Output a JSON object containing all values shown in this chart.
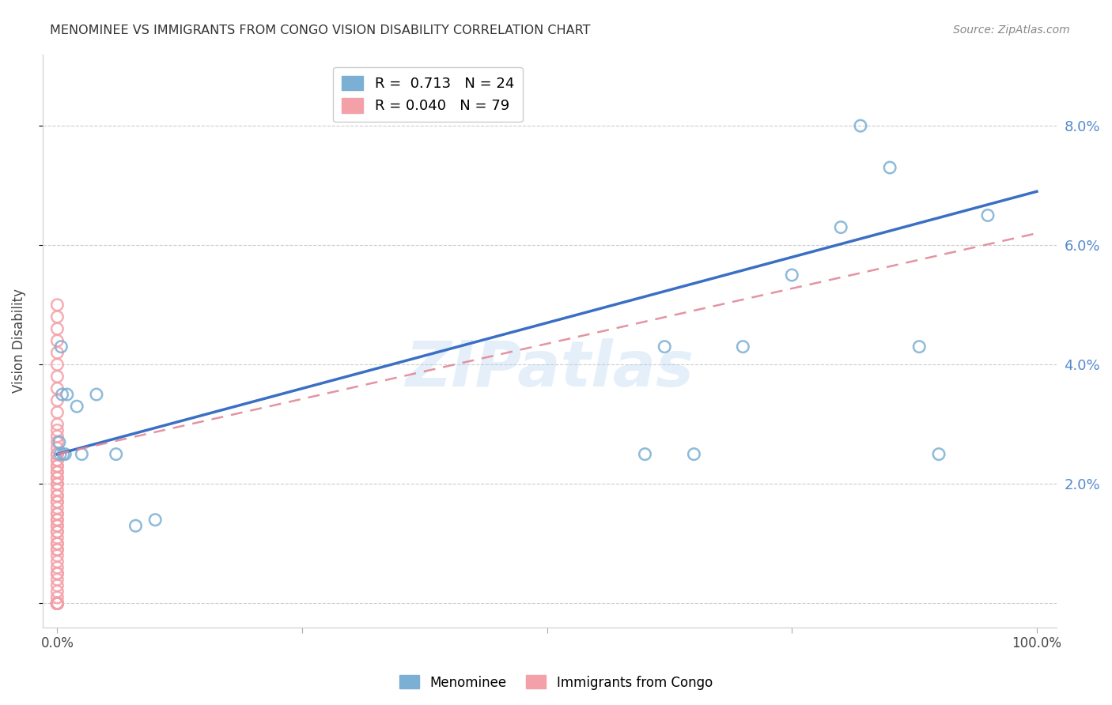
{
  "title": "MENOMINEE VS IMMIGRANTS FROM CONGO VISION DISABILITY CORRELATION CHART",
  "source": "Source: ZipAtlas.com",
  "ylabel": "Vision Disability",
  "watermark": "ZIPatlas",
  "menominee_R": "0.713",
  "menominee_N": "24",
  "congo_R": "0.040",
  "congo_N": "79",
  "menominee_color": "#7BAFD4",
  "congo_color": "#F4A0A8",
  "line_menominee_color": "#3A6FC4",
  "line_congo_color": "#E08898",
  "background_color": "#FFFFFF",
  "grid_color": "#CCCCCC",
  "menominee_x": [
    0.002,
    0.003,
    0.004,
    0.005,
    0.006,
    0.008,
    0.01,
    0.02,
    0.025,
    0.04,
    0.06,
    0.08,
    0.1,
    0.6,
    0.62,
    0.65,
    0.7,
    0.75,
    0.8,
    0.82,
    0.85,
    0.88,
    0.9,
    0.95
  ],
  "menominee_y": [
    0.027,
    0.025,
    0.043,
    0.035,
    0.025,
    0.025,
    0.035,
    0.033,
    0.025,
    0.035,
    0.025,
    0.013,
    0.014,
    0.025,
    0.043,
    0.025,
    0.043,
    0.055,
    0.063,
    0.08,
    0.073,
    0.043,
    0.025,
    0.065
  ],
  "congo_x": [
    0.0,
    0.0,
    0.0,
    0.0,
    0.0,
    0.0,
    0.0,
    0.0,
    0.0,
    0.0,
    0.0,
    0.0,
    0.0,
    0.0,
    0.0,
    0.0,
    0.0,
    0.0,
    0.0,
    0.0,
    0.0,
    0.0,
    0.0,
    0.0,
    0.0,
    0.0,
    0.0,
    0.0,
    0.0,
    0.0,
    0.0,
    0.0,
    0.0,
    0.0,
    0.0,
    0.0,
    0.0,
    0.0,
    0.0,
    0.0,
    0.0,
    0.0,
    0.0,
    0.0,
    0.0,
    0.0,
    0.0,
    0.0,
    0.0,
    0.0,
    0.0,
    0.0,
    0.0,
    0.0,
    0.0,
    0.0,
    0.0,
    0.0,
    0.0,
    0.0,
    0.0,
    0.0,
    0.0,
    0.0,
    0.0,
    0.0,
    0.0,
    0.0,
    0.0,
    0.0,
    0.0,
    0.0,
    0.0,
    0.0,
    0.0,
    0.0,
    0.0,
    0.0,
    0.0
  ],
  "congo_y": [
    0.05,
    0.048,
    0.046,
    0.044,
    0.042,
    0.04,
    0.038,
    0.036,
    0.034,
    0.032,
    0.03,
    0.029,
    0.028,
    0.027,
    0.026,
    0.025,
    0.025,
    0.024,
    0.024,
    0.023,
    0.023,
    0.022,
    0.022,
    0.021,
    0.021,
    0.02,
    0.02,
    0.019,
    0.018,
    0.018,
    0.017,
    0.017,
    0.016,
    0.015,
    0.015,
    0.014,
    0.014,
    0.013,
    0.013,
    0.012,
    0.012,
    0.011,
    0.01,
    0.01,
    0.009,
    0.009,
    0.008,
    0.007,
    0.006,
    0.005,
    0.005,
    0.004,
    0.003,
    0.002,
    0.001,
    0.0,
    0.0,
    0.0,
    0.0,
    0.0,
    0.0,
    0.0,
    0.0,
    0.0,
    0.0,
    0.0,
    0.0,
    0.0,
    0.0,
    0.0,
    0.0,
    0.0,
    0.0,
    0.0,
    0.0,
    0.0,
    0.0,
    0.0,
    0.0
  ],
  "xlim": [
    -0.015,
    1.02
  ],
  "ylim": [
    -0.004,
    0.092
  ],
  "line_men_x0": 0.0,
  "line_men_y0": 0.025,
  "line_men_x1": 1.0,
  "line_men_y1": 0.069,
  "line_congo_x0": 0.0,
  "line_congo_y0": 0.025,
  "line_congo_x1": 1.0,
  "line_congo_y1": 0.062
}
